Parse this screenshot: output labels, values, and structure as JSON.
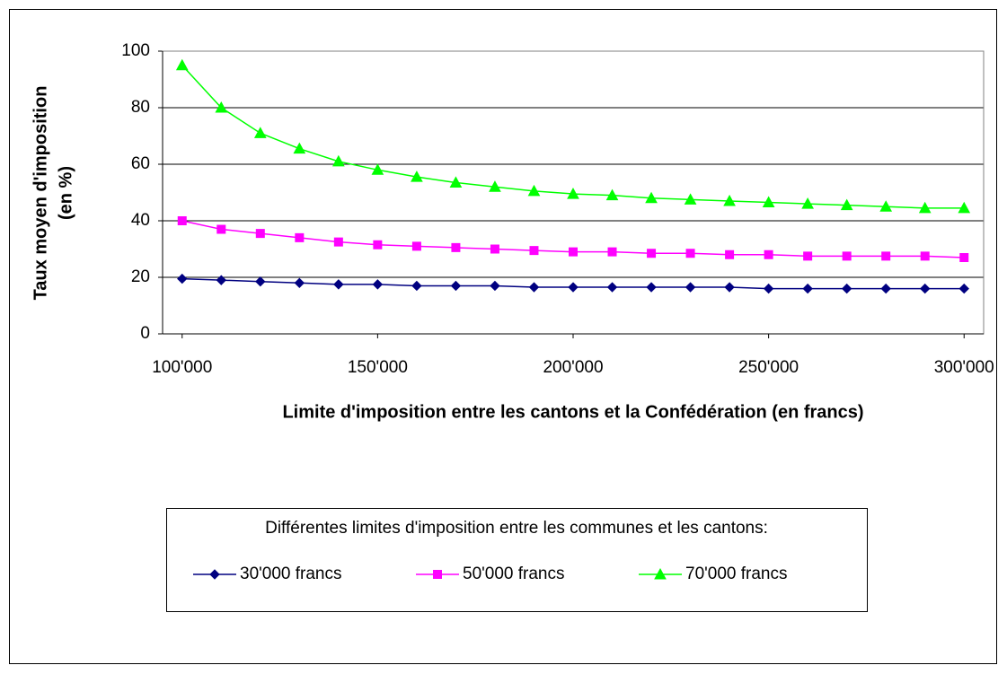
{
  "chart_data": {
    "type": "line",
    "x_label": "Limite d'imposition entre les cantons et la Confédération (en francs)",
    "y_label": [
      "Taux moyen d'imposition",
      "(en %)"
    ],
    "x": [
      100000,
      110000,
      120000,
      130000,
      140000,
      150000,
      160000,
      170000,
      180000,
      190000,
      200000,
      210000,
      220000,
      230000,
      240000,
      250000,
      260000,
      270000,
      280000,
      290000,
      300000
    ],
    "series": [
      {
        "name": "30'000 francs",
        "color": "#000080",
        "marker": "diamond",
        "values": [
          19.5,
          19,
          18.5,
          18,
          17.5,
          17.5,
          17,
          17,
          17,
          16.5,
          16.5,
          16.5,
          16.5,
          16.5,
          16.5,
          16,
          16,
          16,
          16,
          16,
          16
        ]
      },
      {
        "name": "50'000 francs",
        "color": "#ff00ff",
        "marker": "square",
        "values": [
          40,
          37,
          35.5,
          34,
          32.5,
          31.5,
          31,
          30.5,
          30,
          29.5,
          29,
          29,
          28.5,
          28.5,
          28,
          28,
          27.5,
          27.5,
          27.5,
          27.5,
          27
        ]
      },
      {
        "name": "70'000 francs",
        "color": "#00ff00",
        "marker": "triangle",
        "values": [
          95,
          80,
          71,
          65.5,
          61,
          58,
          55.5,
          53.5,
          52,
          50.5,
          49.5,
          49,
          48,
          47.5,
          47,
          46.5,
          46,
          45.5,
          45,
          44.5,
          44.5
        ]
      }
    ],
    "xlim": [
      95000,
      305000
    ],
    "xticks": [
      {
        "value": 100000,
        "label": "100'000"
      },
      {
        "value": 150000,
        "label": "150'000"
      },
      {
        "value": 200000,
        "label": "200'000"
      },
      {
        "value": 250000,
        "label": "250'000"
      },
      {
        "value": 300000,
        "label": "300'000"
      }
    ],
    "ylim": [
      0,
      100
    ],
    "yticks": [
      0,
      20,
      40,
      60,
      80,
      100
    ],
    "grid": true,
    "legend": {
      "title": "Différentes limites d'imposition entre les communes et les cantons:",
      "position": "bottom"
    }
  }
}
